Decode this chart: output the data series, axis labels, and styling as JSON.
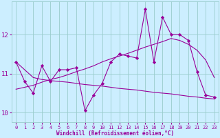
{
  "x": [
    0,
    1,
    2,
    3,
    4,
    5,
    6,
    7,
    8,
    9,
    10,
    11,
    12,
    13,
    14,
    15,
    16,
    17,
    18,
    19,
    20,
    21,
    22,
    23
  ],
  "y_main": [
    11.3,
    10.8,
    10.5,
    11.2,
    10.8,
    11.1,
    11.1,
    11.15,
    10.05,
    10.45,
    10.75,
    11.3,
    11.5,
    11.45,
    11.4,
    12.65,
    11.3,
    12.45,
    12.0,
    12.0,
    11.85,
    11.05,
    10.45,
    10.4
  ],
  "y_descend": [
    11.3,
    11.1,
    10.9,
    10.85,
    10.82,
    10.8,
    10.78,
    10.75,
    10.72,
    10.7,
    10.68,
    10.65,
    10.62,
    10.6,
    10.58,
    10.55,
    10.52,
    10.5,
    10.48,
    10.45,
    10.42,
    10.4,
    10.37,
    10.35
  ],
  "y_ascend": [
    10.6,
    10.65,
    10.7,
    10.78,
    10.85,
    10.9,
    10.97,
    11.05,
    11.12,
    11.2,
    11.3,
    11.38,
    11.45,
    11.52,
    11.6,
    11.68,
    11.75,
    11.82,
    11.9,
    11.85,
    11.75,
    11.6,
    11.35,
    10.9
  ],
  "xlabel": "Windchill (Refroidissement éolien,°C)",
  "xlim": [
    -0.5,
    23.5
  ],
  "ylim": [
    9.75,
    12.85
  ],
  "yticks": [
    10,
    11,
    12
  ],
  "xticks": [
    0,
    1,
    2,
    3,
    4,
    5,
    6,
    7,
    8,
    9,
    10,
    11,
    12,
    13,
    14,
    15,
    16,
    17,
    18,
    19,
    20,
    21,
    22,
    23
  ],
  "line_color": "#990099",
  "bg_color": "#cceeff",
  "grid_color": "#99cccc",
  "tick_color": "#990099",
  "label_color": "#990099"
}
